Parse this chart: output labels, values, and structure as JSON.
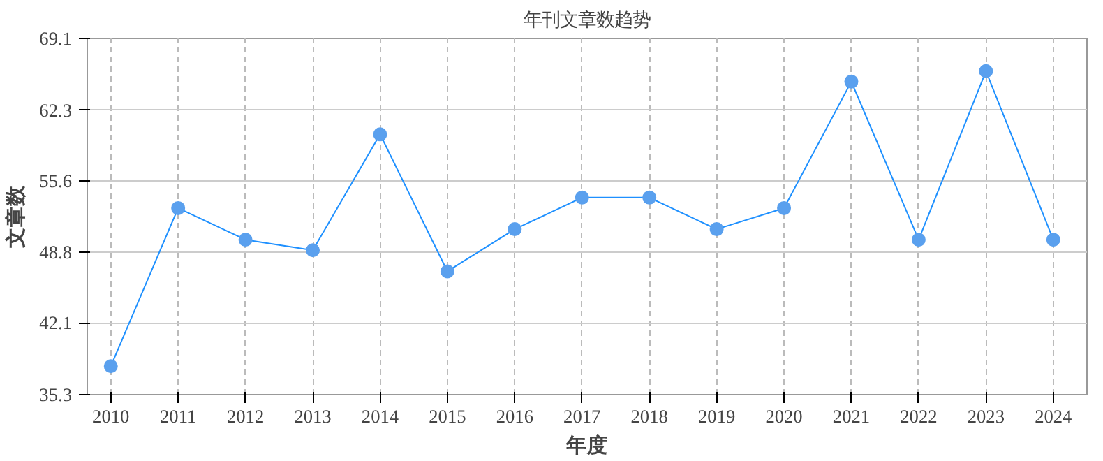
{
  "chart_data": {
    "type": "line",
    "title": "年刊文章数趋势",
    "xlabel": "年度",
    "ylabel": "文章数",
    "categories": [
      "2010",
      "2011",
      "2012",
      "2013",
      "2014",
      "2015",
      "2016",
      "2017",
      "2018",
      "2019",
      "2020",
      "2021",
      "2022",
      "2023",
      "2024"
    ],
    "series": [
      {
        "color": "#1e90ff",
        "values": [
          38,
          53,
          50,
          49,
          60,
          47,
          51,
          54,
          54,
          51,
          53,
          65,
          50,
          66,
          50
        ]
      }
    ],
    "ylim": [
      35.3,
      69.1
    ],
    "yticks": [
      35.3,
      42.1,
      48.8,
      55.6,
      62.3,
      69.1
    ],
    "grid": true,
    "marker": "circle",
    "line_style": "solid"
  }
}
